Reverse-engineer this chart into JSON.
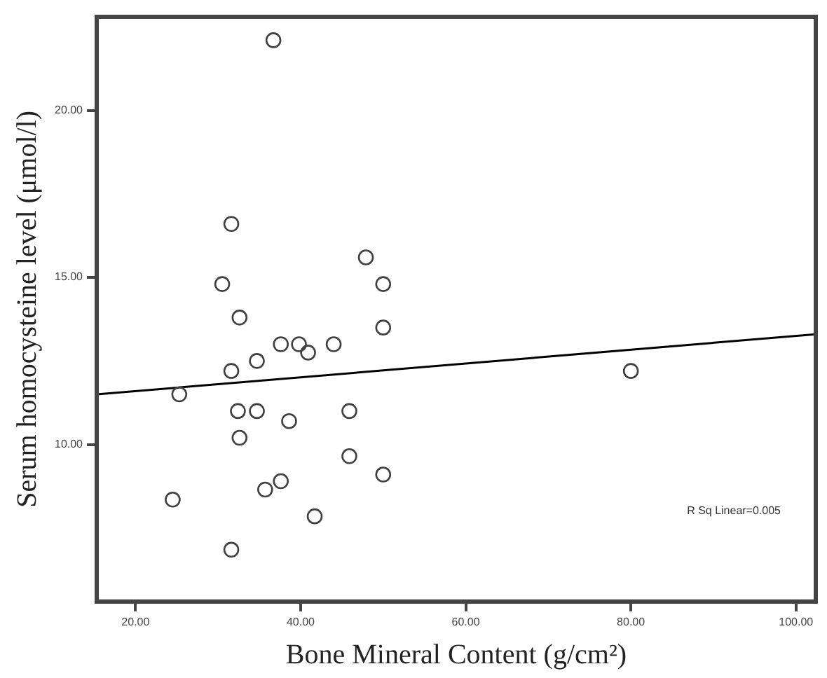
{
  "chart_data": {
    "type": "scatter",
    "xlabel": "Bone Mineral Content (g/cm²)",
    "ylabel": "Serum homocysteine level (μmol/l)",
    "xlim": [
      15.3,
      102.4
    ],
    "ylim": [
      5.3,
      22.8
    ],
    "xticks": [
      {
        "value": 20,
        "label": "20.00"
      },
      {
        "value": 40,
        "label": "40.00"
      },
      {
        "value": 60,
        "label": "60.00"
      },
      {
        "value": 80,
        "label": "80.00"
      },
      {
        "value": 100,
        "label": "100.00"
      }
    ],
    "yticks": [
      {
        "value": 10,
        "label": "10.00"
      },
      {
        "value": 15,
        "label": "15.00"
      },
      {
        "value": 20,
        "label": "20.00"
      }
    ],
    "grid": false,
    "marker": "circle",
    "annotations": [
      "R Sq Linear=0.005"
    ],
    "series": [
      {
        "color": "#404040",
        "x": [
          36.7,
          31.6,
          30.5,
          47.9,
          50,
          32.6,
          50,
          37.6,
          39.8,
          40.9,
          44,
          34.7,
          31.6,
          25.3,
          32.4,
          34.7,
          38.6,
          45.9,
          32.6,
          45.9,
          50,
          24.5,
          37.6,
          35.7,
          41.7,
          31.6,
          80
        ],
        "values": [
          22.1,
          16.6,
          14.8,
          15.6,
          14.8,
          13.8,
          13.5,
          13.0,
          13.0,
          12.75,
          13.0,
          12.5,
          12.2,
          11.5,
          11.0,
          11.0,
          10.7,
          11.0,
          10.2,
          9.65,
          9.1,
          8.35,
          8.9,
          8.65,
          7.85,
          6.85,
          12.2
        ]
      },
      {
        "type": "line",
        "color": "#000000",
        "marker": "none",
        "x": [
          15.3,
          102.4
        ],
        "values": [
          11.5,
          13.3
        ]
      }
    ]
  }
}
